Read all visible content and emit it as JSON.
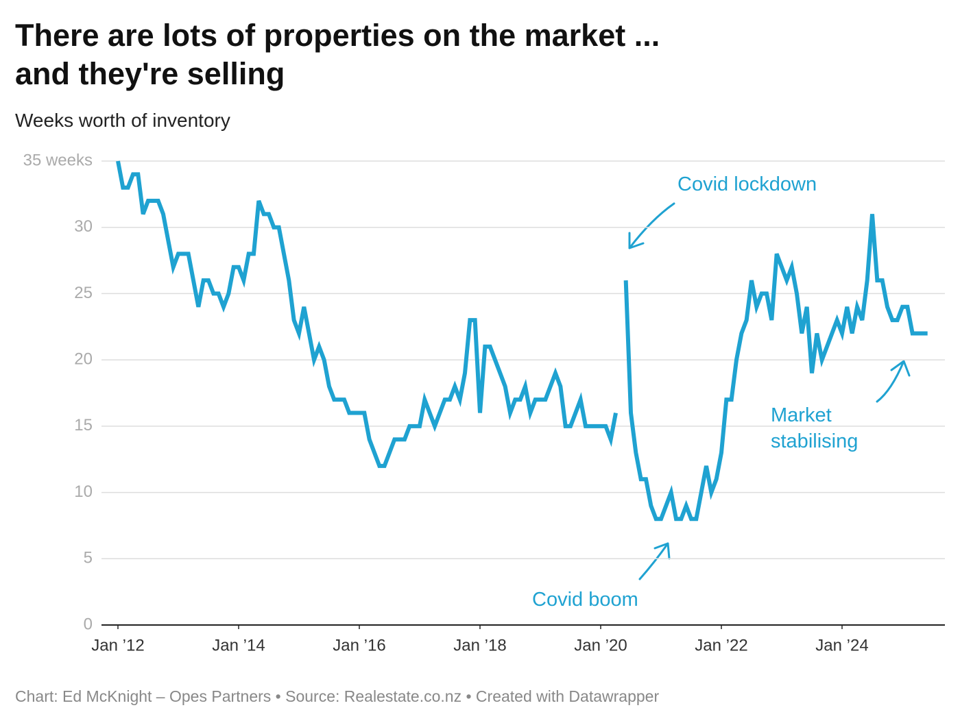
{
  "chart_data": {
    "type": "line",
    "title": "There are lots of properties on the market ...\nand they're selling",
    "subtitle": "Weeks worth of inventory",
    "source": "Chart: Ed McKnight – Opes Partners • Source: Realestate.co.nz • Created with Datawrapper",
    "color": "#1fa2d1",
    "grid": true,
    "x": [
      "2012-01",
      "2012-02",
      "2012-03",
      "2012-04",
      "2012-05",
      "2012-06",
      "2012-07",
      "2012-08",
      "2012-09",
      "2012-10",
      "2012-11",
      "2012-12",
      "2013-01",
      "2013-02",
      "2013-03",
      "2013-04",
      "2013-05",
      "2013-06",
      "2013-07",
      "2013-08",
      "2013-09",
      "2013-10",
      "2013-11",
      "2013-12",
      "2014-01",
      "2014-02",
      "2014-03",
      "2014-04",
      "2014-05",
      "2014-06",
      "2014-07",
      "2014-08",
      "2014-09",
      "2014-10",
      "2014-11",
      "2014-12",
      "2015-01",
      "2015-02",
      "2015-03",
      "2015-04",
      "2015-05",
      "2015-06",
      "2015-07",
      "2015-08",
      "2015-09",
      "2015-10",
      "2015-11",
      "2015-12",
      "2016-01",
      "2016-02",
      "2016-03",
      "2016-04",
      "2016-05",
      "2016-06",
      "2016-07",
      "2016-08",
      "2016-09",
      "2016-10",
      "2016-11",
      "2016-12",
      "2017-01",
      "2017-02",
      "2017-03",
      "2017-04",
      "2017-05",
      "2017-06",
      "2017-07",
      "2017-08",
      "2017-09",
      "2017-10",
      "2017-11",
      "2017-12",
      "2018-01",
      "2018-02",
      "2018-03",
      "2018-04",
      "2018-05",
      "2018-06",
      "2018-07",
      "2018-08",
      "2018-09",
      "2018-10",
      "2018-11",
      "2018-12",
      "2019-01",
      "2019-02",
      "2019-03",
      "2019-04",
      "2019-05",
      "2019-06",
      "2019-07",
      "2019-08",
      "2019-09",
      "2019-10",
      "2019-11",
      "2019-12",
      "2020-01",
      "2020-02",
      "2020-03",
      "2020-04",
      "2020-05",
      "2020-06",
      "2020-07",
      "2020-08",
      "2020-09",
      "2020-10",
      "2020-11",
      "2020-12",
      "2021-01",
      "2021-02",
      "2021-03",
      "2021-04",
      "2021-05",
      "2021-06",
      "2021-07",
      "2021-08",
      "2021-09",
      "2021-10",
      "2021-11",
      "2021-12",
      "2022-01",
      "2022-02",
      "2022-03",
      "2022-04",
      "2022-05",
      "2022-06",
      "2022-07",
      "2022-08",
      "2022-09",
      "2022-10",
      "2022-11",
      "2022-12",
      "2023-01",
      "2023-02",
      "2023-03",
      "2023-04",
      "2023-05",
      "2023-06",
      "2023-07",
      "2023-08",
      "2023-09",
      "2023-10",
      "2023-11",
      "2023-12",
      "2024-01",
      "2024-02",
      "2024-03",
      "2024-04",
      "2024-05",
      "2024-06",
      "2024-07",
      "2024-08",
      "2024-09",
      "2024-10",
      "2024-11",
      "2024-12",
      "2025-01",
      "2025-02",
      "2025-03",
      "2025-04",
      "2025-05",
      "2025-06"
    ],
    "values": [
      35,
      33,
      33,
      34,
      34,
      31,
      32,
      32,
      32,
      31,
      29,
      27,
      28,
      28,
      28,
      26,
      24,
      26,
      26,
      25,
      25,
      24,
      25,
      27,
      27,
      26,
      28,
      28,
      32,
      31,
      31,
      30,
      30,
      28,
      26,
      23,
      22,
      24,
      22,
      20,
      21,
      20,
      18,
      17,
      17,
      17,
      16,
      16,
      16,
      16,
      14,
      13,
      12,
      12,
      13,
      14,
      14,
      14,
      15,
      15,
      15,
      17,
      16,
      15,
      16,
      17,
      17,
      18,
      17,
      19,
      23,
      23,
      16,
      21,
      21,
      20,
      19,
      18,
      16,
      17,
      17,
      18,
      16,
      17,
      17,
      17,
      18,
      19,
      18,
      15,
      15,
      16,
      17,
      15,
      15,
      15,
      15,
      15,
      14,
      16,
      null,
      26,
      16,
      13,
      11,
      11,
      9,
      8,
      8,
      9,
      10,
      8,
      8,
      9,
      8,
      8,
      10,
      12,
      10,
      11,
      13,
      17,
      17,
      20,
      22,
      23,
      26,
      24,
      25,
      25,
      23,
      28,
      27,
      26,
      27,
      25,
      22,
      24,
      19,
      22,
      20,
      21,
      22,
      23,
      22,
      24,
      22,
      24,
      23,
      26,
      31,
      26,
      26,
      24,
      23,
      23,
      24,
      24,
      22,
      22,
      22,
      22
    ],
    "ylim": [
      0,
      35
    ],
    "yticks": [
      0,
      5,
      10,
      15,
      20,
      25,
      30,
      {
        "value": 35,
        "label": "35 weeks"
      }
    ],
    "xticks": [
      {
        "value": "2012-01",
        "label": "Jan ’12"
      },
      {
        "value": "2014-01",
        "label": "Jan ’14"
      },
      {
        "value": "2016-01",
        "label": "Jan ’16"
      },
      {
        "value": "2018-01",
        "label": "Jan ’18"
      },
      {
        "value": "2020-01",
        "label": "Jan ’20"
      },
      {
        "value": "2022-01",
        "label": "Jan ’22"
      },
      {
        "value": "2024-01",
        "label": "Jan ’24"
      }
    ],
    "annotations": [
      "Covid lockdown",
      "Covid boom",
      "Market\nstabilising"
    ]
  }
}
